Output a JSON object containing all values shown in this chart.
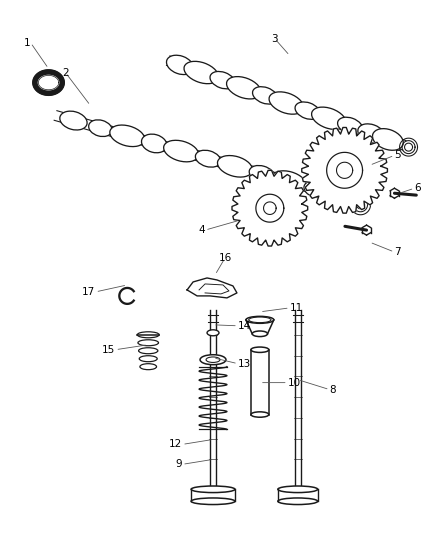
{
  "background_color": "#ffffff",
  "line_color": "#1a1a1a",
  "line_width": 1.1,
  "label_color": "#000000",
  "label_fontsize": 7.5,
  "fig_width": 4.38,
  "fig_height": 5.33,
  "dpi": 100
}
